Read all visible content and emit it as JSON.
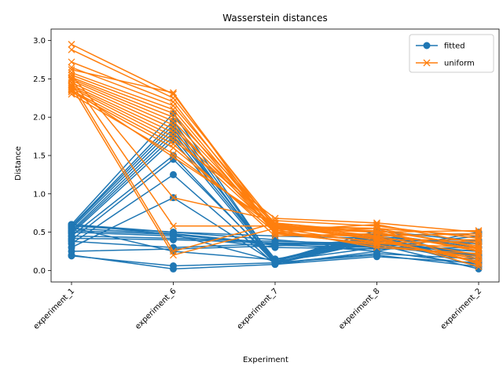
{
  "chart_data": {
    "type": "line",
    "title": "Wasserstein distances",
    "xlabel": "Experiment",
    "ylabel": "Distance",
    "categories": [
      "experiment_1",
      "experiment_6",
      "experiment_7",
      "experiment_8",
      "experiment_2"
    ],
    "ylim": [
      -0.15,
      3.15
    ],
    "yticks": [
      "0.0",
      "0.5",
      "1.0",
      "1.5",
      "2.0",
      "2.5",
      "3.0"
    ],
    "legend_position": "top-right",
    "grid": false,
    "series": [
      {
        "name": "fitted",
        "color": "#1f77b4",
        "marker": "circle",
        "lines": [
          [
            0.6,
            2.05,
            0.1,
            0.42,
            0.05
          ],
          [
            0.58,
            1.95,
            0.12,
            0.45,
            0.1
          ],
          [
            0.57,
            1.9,
            0.08,
            0.5,
            0.15
          ],
          [
            0.55,
            1.85,
            0.1,
            0.4,
            0.2
          ],
          [
            0.52,
            1.8,
            0.15,
            0.35,
            0.25
          ],
          [
            0.5,
            1.75,
            0.12,
            0.48,
            0.3
          ],
          [
            0.48,
            1.7,
            0.1,
            0.44,
            0.35
          ],
          [
            0.45,
            1.5,
            0.09,
            0.38,
            0.4
          ],
          [
            0.4,
            1.45,
            0.12,
            0.3,
            0.45
          ],
          [
            0.35,
            1.25,
            0.08,
            0.25,
            0.5
          ],
          [
            0.3,
            0.95,
            0.1,
            0.2,
            0.05
          ],
          [
            0.2,
            0.02,
            0.08,
            0.18,
            0.1
          ],
          [
            0.19,
            0.06,
            0.1,
            0.22,
            0.15
          ],
          [
            0.6,
            0.5,
            0.4,
            0.3,
            0.2
          ],
          [
            0.55,
            0.48,
            0.35,
            0.32,
            0.25
          ],
          [
            0.5,
            0.45,
            0.3,
            0.28,
            0.3
          ],
          [
            0.45,
            0.42,
            0.38,
            0.35,
            0.12
          ],
          [
            0.38,
            0.3,
            0.35,
            0.25,
            0.08
          ],
          [
            0.25,
            0.28,
            0.32,
            0.4,
            0.18
          ],
          [
            0.58,
            0.5,
            0.45,
            0.42,
            0.35
          ],
          [
            0.52,
            0.47,
            0.33,
            0.3,
            0.22
          ],
          [
            0.42,
            0.4,
            0.36,
            0.34,
            0.02
          ],
          [
            0.56,
            0.25,
            0.14,
            0.46,
            0.48
          ],
          [
            0.6,
            0.47,
            0.12,
            0.52,
            0.38
          ]
        ]
      },
      {
        "name": "uniform",
        "color": "#ff7f0e",
        "marker": "x",
        "lines": [
          [
            2.95,
            2.3,
            0.55,
            0.5,
            0.52
          ],
          [
            2.88,
            2.25,
            0.6,
            0.45,
            0.48
          ],
          [
            2.72,
            2.2,
            0.5,
            0.55,
            0.45
          ],
          [
            2.65,
            2.15,
            0.58,
            0.4,
            0.4
          ],
          [
            2.58,
            2.1,
            0.52,
            0.6,
            0.35
          ],
          [
            2.55,
            2.05,
            0.48,
            0.35,
            0.3
          ],
          [
            2.52,
            2.0,
            0.62,
            0.5,
            0.25
          ],
          [
            2.5,
            1.95,
            0.55,
            0.45,
            0.2
          ],
          [
            2.48,
            1.9,
            0.5,
            0.38,
            0.15
          ],
          [
            2.45,
            1.85,
            0.6,
            0.42,
            0.1
          ],
          [
            2.42,
            1.8,
            0.57,
            0.55,
            0.08
          ],
          [
            2.4,
            1.75,
            0.53,
            0.3,
            0.22
          ],
          [
            2.38,
            1.7,
            0.68,
            0.62,
            0.5
          ],
          [
            2.35,
            1.65,
            0.45,
            0.48,
            0.28
          ],
          [
            2.33,
            1.6,
            0.5,
            0.33,
            0.18
          ],
          [
            2.3,
            1.52,
            0.56,
            0.52,
            0.32
          ],
          [
            2.55,
            0.95,
            0.65,
            0.58,
            0.42
          ],
          [
            2.5,
            0.58,
            0.58,
            0.55,
            0.3
          ],
          [
            2.45,
            0.25,
            0.62,
            0.4,
            0.12
          ],
          [
            2.4,
            0.2,
            0.55,
            0.36,
            0.38
          ],
          [
            2.62,
            2.32,
            0.48,
            0.44,
            0.05
          ],
          [
            2.36,
            1.48,
            0.6,
            0.5,
            0.26
          ]
        ]
      }
    ]
  }
}
